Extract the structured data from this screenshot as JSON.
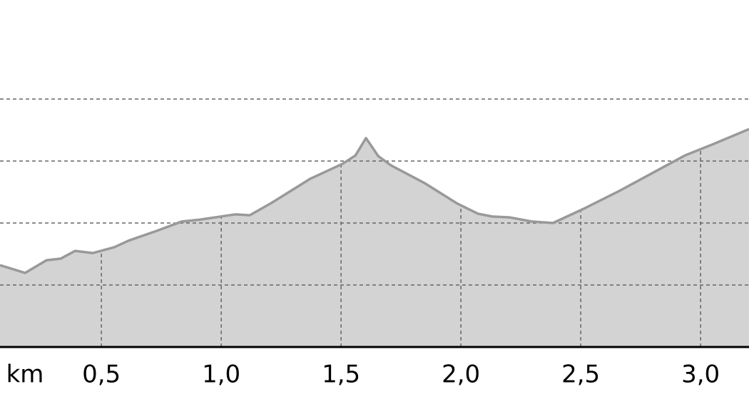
{
  "chart_data": {
    "type": "area",
    "x_label": "km",
    "x": [
      0.077,
      0.182,
      0.271,
      0.33,
      0.39,
      0.464,
      0.554,
      0.613,
      0.732,
      0.836,
      0.911,
      1.06,
      1.119,
      1.208,
      1.372,
      1.506,
      1.56,
      1.604,
      1.655,
      1.708,
      1.848,
      1.982,
      2.071,
      2.131,
      2.205,
      2.295,
      2.384,
      2.518,
      2.667,
      2.815,
      2.935,
      3.054,
      3.202
    ],
    "values": [
      26.4,
      23.9,
      28.0,
      28.5,
      31.0,
      30.3,
      32.2,
      34.3,
      37.5,
      40.5,
      41.1,
      42.8,
      42.5,
      46.4,
      54.3,
      59.1,
      61.8,
      67.4,
      61.6,
      58.6,
      52.9,
      46.4,
      43.0,
      42.1,
      41.8,
      40.5,
      40.0,
      44.8,
      50.6,
      56.8,
      61.8,
      65.5,
      70.3
    ],
    "color": "#d3d3d3",
    "line_color": "#999999",
    "xlim": [
      0.077,
      3.202
    ],
    "xticks": [
      {
        "value": 0.5,
        "label": "0,5"
      },
      {
        "value": 1.0,
        "label": "1,0"
      },
      {
        "value": 1.5,
        "label": "1,5"
      },
      {
        "value": 2.0,
        "label": "2,0"
      },
      {
        "value": 2.5,
        "label": "2,5"
      },
      {
        "value": 3.0,
        "label": "3,0"
      }
    ],
    "ylim": [
      0,
      100
    ],
    "ygrid": [
      20,
      40,
      60,
      80
    ],
    "grid": true
  }
}
